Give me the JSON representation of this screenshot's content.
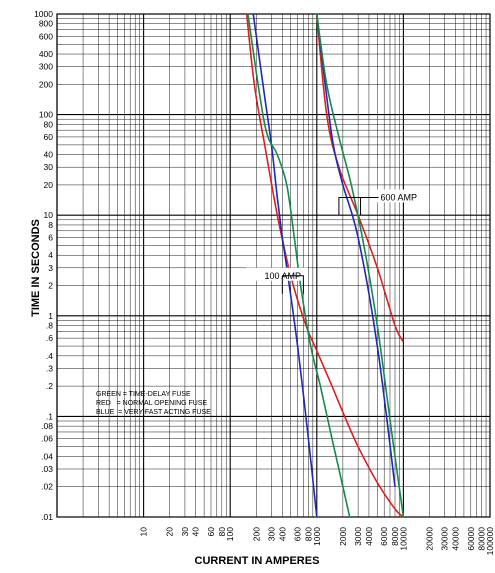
{
  "chart_data": {
    "type": "line",
    "title": "",
    "xlabel": "CURRENT IN AMPERES",
    "ylabel": "TIME IN SECONDS",
    "xscale": "log",
    "yscale": "log",
    "xlim": [
      1,
      100000
    ],
    "ylim": [
      0.01,
      1000
    ],
    "grid": true,
    "x_tick_labels": [
      "10",
      "20",
      "30",
      "40",
      "60",
      "80",
      "100",
      "200",
      "300",
      "400",
      "600",
      "800",
      "1000",
      "2000",
      "3000",
      "4000",
      "6000",
      "8000",
      "10000",
      "20000",
      "30000",
      "40000",
      "60000",
      "80000",
      "100000"
    ],
    "y_tick_labels": [
      "1000",
      "800",
      "600",
      "400",
      "300",
      "200",
      "100",
      "80",
      "60",
      "40",
      "30",
      "20",
      "10",
      "8",
      "6",
      "4",
      "3",
      "2",
      "1",
      ".8",
      ".6",
      ".4",
      ".3",
      ".2",
      ".1",
      ".08",
      ".06",
      ".04",
      ".03",
      ".02",
      ".01"
    ],
    "legend_lines": [
      "GREEN = TIME-DELAY FUSE",
      "RED   = NORMAL OPENING FUSE",
      "BLUE  = VERY-FAST ACTING FUSE"
    ],
    "annotations": [
      {
        "text": "100 AMP",
        "x": 300,
        "y": 2.5
      },
      {
        "text": "600 AMP",
        "x": 3000,
        "y": 15
      }
    ],
    "series": [
      {
        "color": "#dd1f1f",
        "group": "100 AMP",
        "x": [
          155,
          190,
          250,
          350,
          500,
          750,
          1000,
          1500,
          2000,
          3000,
          5000,
          8000,
          10000
        ],
        "y": [
          1000,
          200,
          50,
          10,
          2.5,
          0.8,
          0.45,
          0.2,
          0.11,
          0.05,
          0.022,
          0.012,
          0.01
        ]
      },
      {
        "color": "#1f2ab0",
        "group": "100 AMP",
        "x": [
          185,
          250,
          300,
          350,
          400,
          450,
          600,
          800,
          1000
        ],
        "y": [
          1000,
          150,
          50,
          15,
          6,
          3,
          0.5,
          0.06,
          0.01
        ]
      },
      {
        "color": "#168a4a",
        "group": "100 AMP",
        "x": [
          160,
          250,
          350,
          450,
          550,
          650,
          850,
          1100,
          1500,
          2000,
          2400
        ],
        "y": [
          1000,
          80,
          40,
          20,
          6,
          2,
          0.5,
          0.2,
          0.06,
          0.02,
          0.01
        ]
      },
      {
        "color": "#dd1f1f",
        "group": "600 AMP",
        "x": [
          1000,
          1300,
          1800,
          3000,
          5000,
          8000,
          10000
        ],
        "y": [
          1000,
          100,
          30,
          10,
          3,
          0.8,
          0.55
        ]
      },
      {
        "color": "#1f2ab0",
        "group": "600 AMP",
        "x": [
          1000,
          1250,
          1550,
          2000,
          3000,
          5000,
          8000
        ],
        "y": [
          1000,
          200,
          50,
          20,
          6,
          0.5,
          0.02
        ]
      },
      {
        "color": "#168a4a",
        "group": "600 AMP",
        "x": [
          1000,
          1300,
          1800,
          2500,
          3500,
          5000,
          6500,
          8000,
          10000
        ],
        "y": [
          1000,
          200,
          60,
          20,
          5,
          0.8,
          0.15,
          0.04,
          0.01
        ]
      }
    ]
  }
}
